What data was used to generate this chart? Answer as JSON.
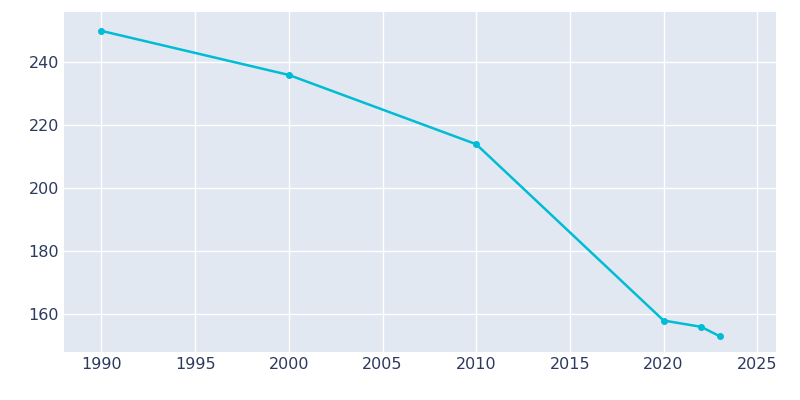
{
  "years": [
    1990,
    2000,
    2010,
    2020,
    2022,
    2023
  ],
  "population": [
    250,
    236,
    214,
    158,
    156,
    153
  ],
  "line_color": "#00bcd4",
  "marker": "o",
  "marker_size": 4,
  "line_width": 1.8,
  "bg_color": "#ffffff",
  "plot_bg_color": "#e2e8f2",
  "xlim": [
    1988,
    2026
  ],
  "ylim": [
    148,
    256
  ],
  "xticks": [
    1990,
    1995,
    2000,
    2005,
    2010,
    2015,
    2020,
    2025
  ],
  "yticks": [
    160,
    180,
    200,
    220,
    240
  ],
  "grid_color": "#ffffff",
  "grid_linewidth": 1.0,
  "tick_label_color": "#2d3a5e",
  "tick_fontsize": 11.5
}
